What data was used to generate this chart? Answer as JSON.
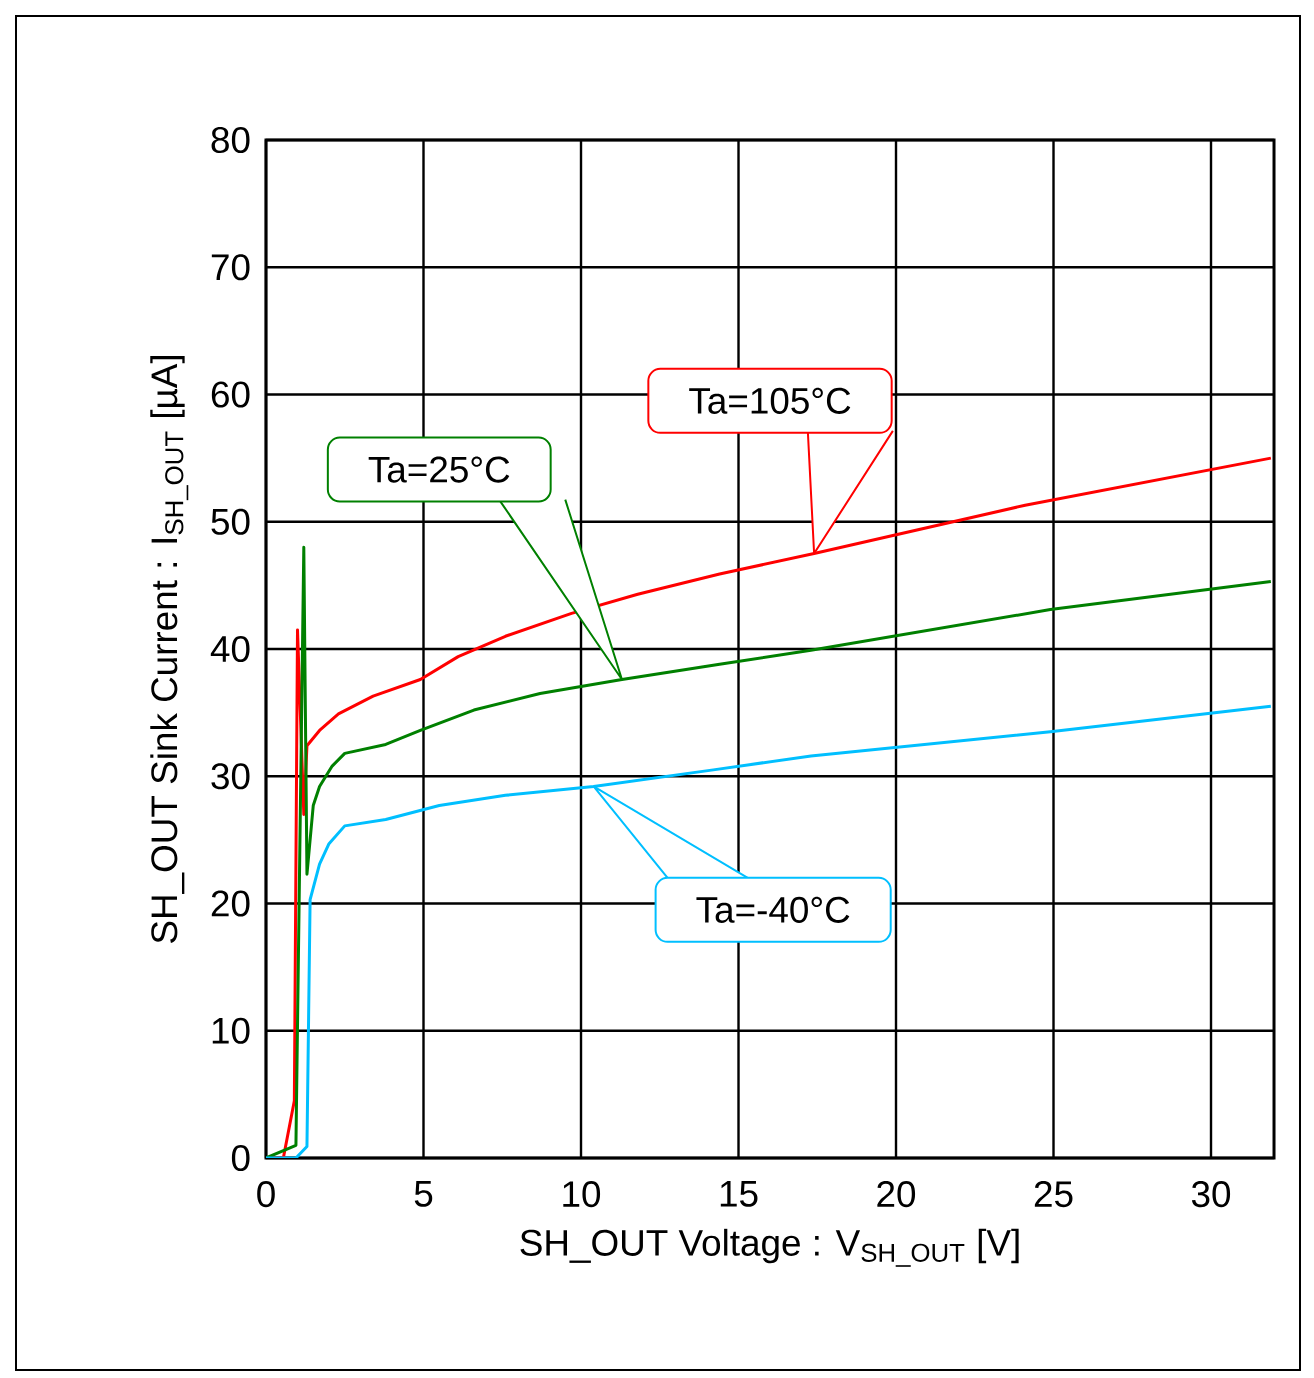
{
  "chart_data": {
    "type": "line",
    "xlabel": "SH_OUT Voltage : V$_{SH_OUT}$ [V]",
    "ylabel": "SH_OUT Sink Current : I$_{SH_OUT}$ [µA]",
    "xlim": [
      0,
      32
    ],
    "ylim": [
      0,
      80
    ],
    "xticks": [
      0,
      5,
      10,
      15,
      20,
      25,
      30
    ],
    "yticks": [
      0,
      10,
      20,
      30,
      40,
      50,
      60,
      70,
      80
    ],
    "grid": true,
    "marker": "none",
    "line_style": "solid",
    "series": [
      {
        "color": "#ff0000",
        "x": [
          0,
          0.55,
          0.9,
          1.0,
          1.2,
          1.3,
          1.7,
          2.3,
          3.4,
          4.9,
          6.1,
          7.6,
          9.7,
          11.8,
          14.4,
          17.4,
          24.1,
          31.9
        ],
        "values": [
          0,
          0,
          4.5,
          41.5,
          27,
          32.4,
          33.6,
          34.9,
          36.3,
          37.6,
          39.4,
          41,
          42.8,
          44.3,
          45.9,
          47.5,
          51.3,
          55
        ]
      },
      {
        "color": "#008000",
        "x": [
          0,
          0.95,
          1.2,
          1.3,
          1.5,
          1.7,
          2.1,
          2.5,
          3.8,
          4.9,
          6.6,
          8.7,
          11.3,
          14.4,
          17.3,
          24.9,
          31.9
        ],
        "values": [
          0,
          1,
          48,
          22.3,
          27.7,
          29.2,
          30.8,
          31.8,
          32.5,
          33.6,
          35.2,
          36.5,
          37.6,
          38.8,
          39.9,
          43.1,
          45.3
        ]
      },
      {
        "color": "#00bfff",
        "x": [
          0,
          0.95,
          1.3,
          1.4,
          1.7,
          2.0,
          2.5,
          3.8,
          5.5,
          7.6,
          10.4,
          14.2,
          17.3,
          24.9,
          31.9
        ],
        "values": [
          0,
          0,
          0.9,
          20.3,
          23.1,
          24.7,
          26.1,
          26.6,
          27.7,
          28.5,
          29.2,
          30.5,
          31.6,
          33.5,
          35.5
        ]
      }
    ],
    "annotations": [
      "Ta=105°C",
      "Ta=25°C",
      "Ta=-40°C"
    ]
  }
}
